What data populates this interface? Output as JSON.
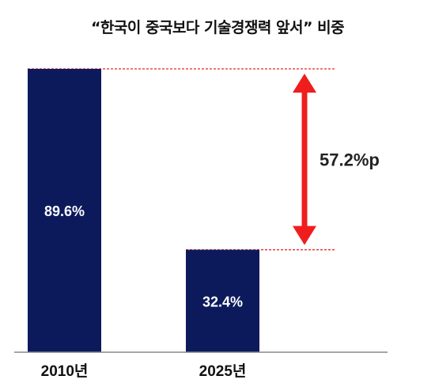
{
  "chart_data": {
    "type": "bar",
    "title": "“한국이 중국보다 기술경쟁력 앞서” 비중",
    "categories": [
      "2010년",
      "2025년"
    ],
    "values": [
      89.6,
      32.4
    ],
    "value_labels": [
      "89.6%",
      "32.4%"
    ],
    "ylim": [
      0,
      89.6
    ],
    "grid": false,
    "annotation": {
      "text": "57.2%p",
      "from_value": 89.6,
      "to_value": 32.4
    },
    "colors": {
      "bar": "#0c1a5c",
      "reference_line": "#e8262b",
      "arrow": "#f01d1d",
      "axis": "#888888"
    }
  }
}
